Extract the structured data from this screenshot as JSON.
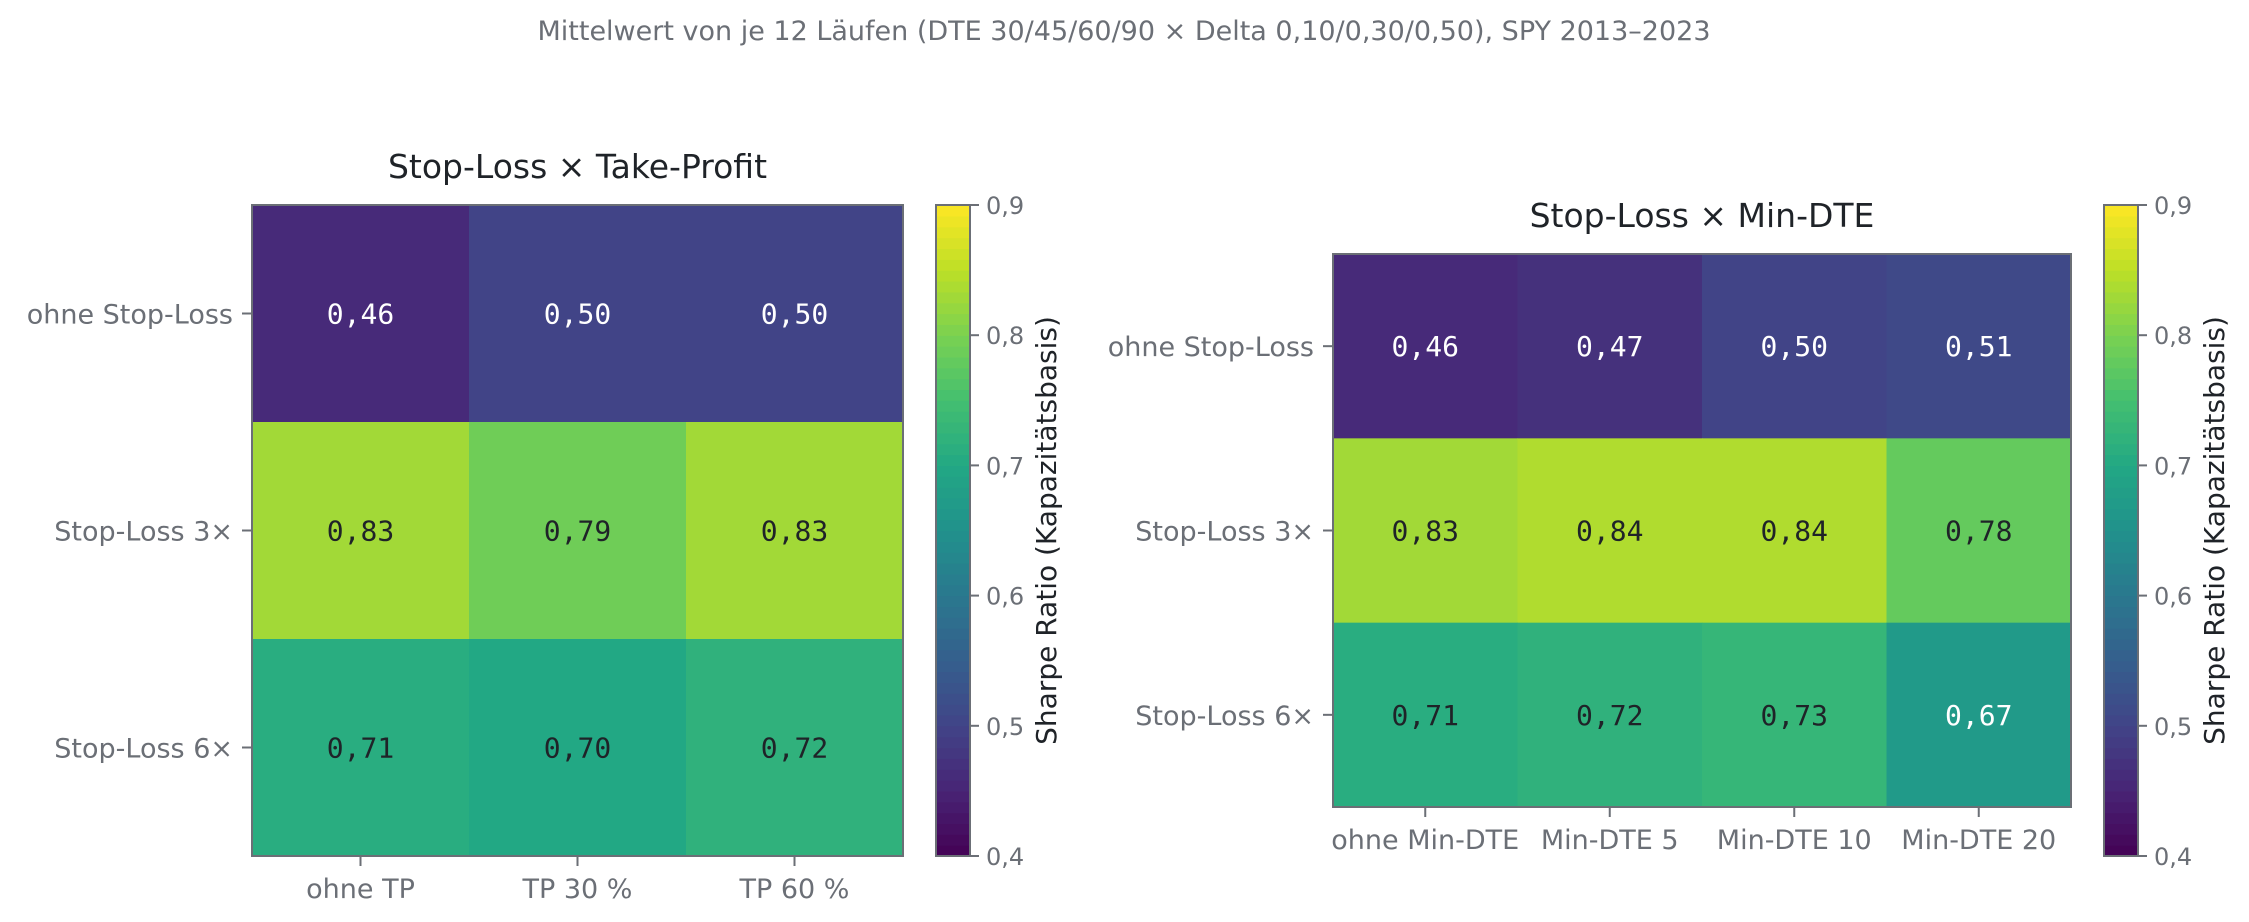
{
  "figure": {
    "suptitle": "Mittelwert von je 12 Läufen (DTE 30/45/60/90 × Delta 0,10/0,30/0,50), SPY 2013–2023"
  },
  "chart_data": [
    {
      "type": "heatmap",
      "title": "Stop-Loss × Take-Profit",
      "xlabel": "",
      "ylabel": "",
      "x_categories": [
        "ohne TP",
        "TP 30 %",
        "TP 60 %"
      ],
      "y_categories": [
        "ohne Stop-Loss",
        "Stop-Loss 3×",
        "Stop-Loss 6×"
      ],
      "values": [
        [
          0.46,
          0.5,
          0.5
        ],
        [
          0.83,
          0.79,
          0.83
        ],
        [
          0.71,
          0.7,
          0.72
        ]
      ],
      "value_labels": [
        [
          "0,46",
          "0,50",
          "0,50"
        ],
        [
          "0,83",
          "0,79",
          "0,83"
        ],
        [
          "0,71",
          "0,70",
          "0,72"
        ]
      ],
      "colormap": "viridis",
      "vmin": 0.4,
      "vmax": 0.9,
      "colorbar": {
        "label": "Sharpe Ratio (Kapazitätsbasis)",
        "ticks": [
          0.4,
          0.5,
          0.6,
          0.7,
          0.8,
          0.9
        ],
        "tick_labels": [
          "0,4",
          "0,5",
          "0,6",
          "0,7",
          "0,8",
          "0,9"
        ]
      }
    },
    {
      "type": "heatmap",
      "title": "Stop-Loss × Min-DTE",
      "xlabel": "",
      "ylabel": "",
      "x_categories": [
        "ohne Min-DTE",
        "Min-DTE 5",
        "Min-DTE 10",
        "Min-DTE 20"
      ],
      "y_categories": [
        "ohne Stop-Loss",
        "Stop-Loss 3×",
        "Stop-Loss 6×"
      ],
      "values": [
        [
          0.46,
          0.47,
          0.5,
          0.51
        ],
        [
          0.83,
          0.84,
          0.84,
          0.78
        ],
        [
          0.71,
          0.72,
          0.73,
          0.67
        ]
      ],
      "value_labels": [
        [
          "0,46",
          "0,47",
          "0,50",
          "0,51"
        ],
        [
          "0,83",
          "0,84",
          "0,84",
          "0,78"
        ],
        [
          "0,71",
          "0,72",
          "0,73",
          "0,67"
        ]
      ],
      "colormap": "viridis",
      "vmin": 0.4,
      "vmax": 0.9,
      "colorbar": {
        "label": "Sharpe Ratio (Kapazitätsbasis)",
        "ticks": [
          0.4,
          0.5,
          0.6,
          0.7,
          0.8,
          0.9
        ],
        "tick_labels": [
          "0,4",
          "0,5",
          "0,6",
          "0,7",
          "0,8",
          "0,9"
        ]
      }
    }
  ]
}
